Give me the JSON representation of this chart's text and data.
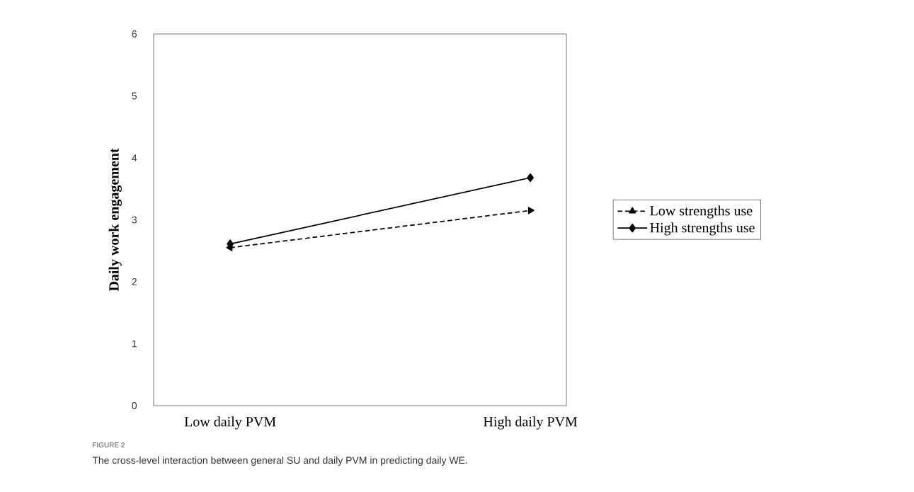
{
  "chart_data": {
    "type": "line",
    "ylabel": "Daily work engagement",
    "categories": [
      "Low daily PVM",
      "High daily PVM"
    ],
    "ylim": [
      0,
      6
    ],
    "yticks": [
      0,
      1,
      2,
      3,
      4,
      5,
      6
    ],
    "legend": "right",
    "series": [
      {
        "name": "Low strengths use",
        "color": "#000000",
        "values": [
          2.55,
          3.15
        ],
        "marker": "triangle",
        "line_style": "dashed"
      },
      {
        "name": "High strengths use",
        "color": "#000000",
        "values": [
          2.61,
          3.68
        ],
        "marker": "diamond",
        "line_style": "solid"
      }
    ],
    "annotations": [
      "FIGURE 2",
      "The cross-level interaction between general SU and daily PVM in predicting daily WE."
    ]
  }
}
